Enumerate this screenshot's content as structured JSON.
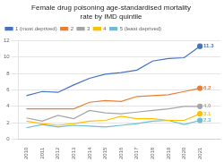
{
  "chart_data": {
    "type": "line",
    "title": "Female drug poisoning age-standardised mortality\nrate by IMD quintile",
    "x": [
      2010,
      2011,
      2012,
      2013,
      2014,
      2015,
      2016,
      2017,
      2018,
      2019,
      2020,
      2021
    ],
    "series": [
      {
        "name": "1 (most deprived)",
        "color": "#4472C4",
        "values": [
          5.3,
          5.8,
          5.7,
          6.6,
          7.4,
          7.9,
          8.1,
          8.4,
          9.5,
          9.8,
          9.9,
          11.3
        ]
      },
      {
        "name": "2",
        "color": "#ED7D31",
        "values": [
          3.7,
          3.7,
          3.7,
          3.7,
          4.5,
          4.7,
          4.6,
          5.2,
          5.3,
          5.4,
          5.8,
          6.2
        ]
      },
      {
        "name": "3",
        "color": "#A5A5A5",
        "values": [
          2.6,
          2.2,
          2.9,
          2.5,
          3.5,
          3.2,
          3.1,
          3.3,
          3.5,
          3.7,
          4.0,
          4.0
        ]
      },
      {
        "name": "4",
        "color": "#FFC000",
        "values": [
          2.2,
          1.9,
          1.7,
          1.9,
          2.2,
          2.3,
          2.8,
          2.5,
          2.5,
          2.3,
          2.3,
          3.1
        ]
      },
      {
        "name": "5 (least deprived)",
        "color": "#70BCD1",
        "values": [
          1.4,
          1.8,
          1.5,
          1.7,
          1.6,
          1.5,
          1.7,
          1.9,
          2.2,
          2.3,
          1.8,
          2.3
        ]
      }
    ],
    "annotations": [
      {
        "text": "11.3",
        "x": 2021,
        "y": 11.3,
        "color": "#4472C4"
      },
      {
        "text": "6.2",
        "x": 2021,
        "y": 6.2,
        "color": "#ED7D31"
      },
      {
        "text": "4.0",
        "x": 2021,
        "y": 4.0,
        "color": "#A5A5A5"
      },
      {
        "text": "3.1",
        "x": 2021,
        "y": 3.1,
        "color": "#FFC000"
      },
      {
        "text": "2.3",
        "x": 2021,
        "y": 2.3,
        "color": "#70BCD1"
      }
    ],
    "xlim": [
      2009.5,
      2022.3
    ],
    "xticks": [
      2010,
      2011,
      2012,
      2013,
      2014,
      2015,
      2016,
      2017,
      2018,
      2019,
      2020,
      2021
    ],
    "ylim": [
      0,
      12
    ],
    "yticks": [
      0,
      2,
      4,
      6,
      8,
      10,
      12
    ],
    "grid": true,
    "legend": "upper left"
  }
}
